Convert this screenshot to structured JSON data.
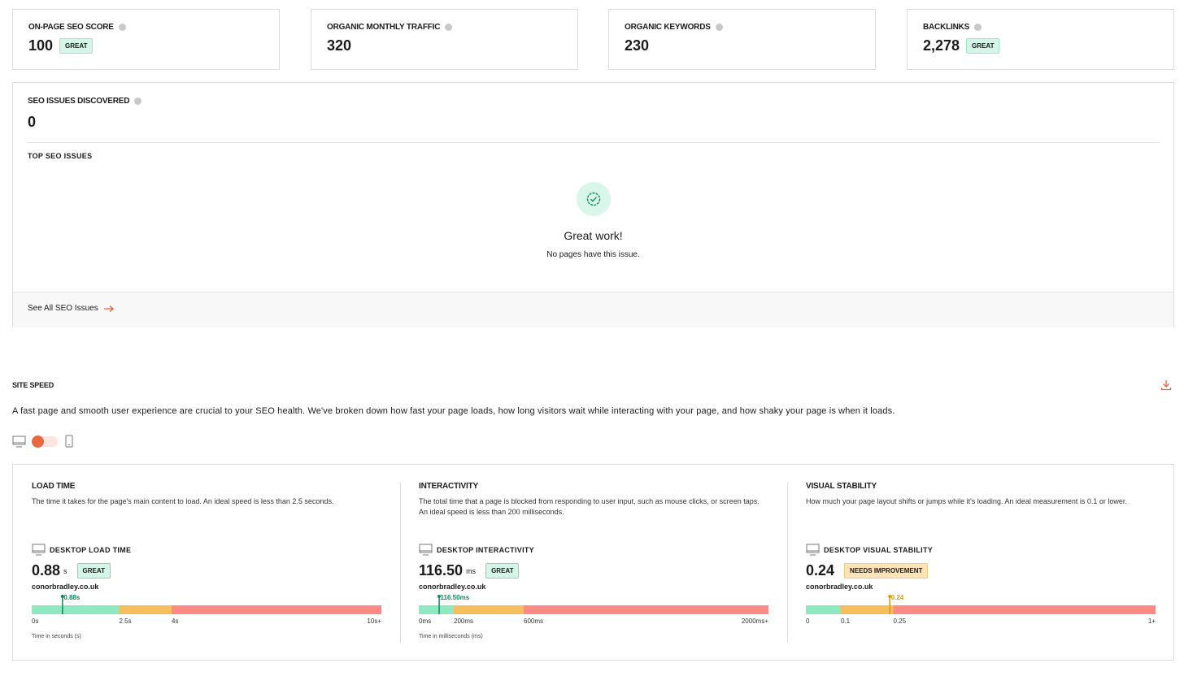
{
  "metrics": [
    {
      "label": "ON-PAGE SEO SCORE",
      "value": 100,
      "badge": "GREAT"
    },
    {
      "label": "ORGANIC MONTHLY TRAFFIC",
      "value": 320
    },
    {
      "label": "ORGANIC KEYWORDS",
      "value": 230
    },
    {
      "label": "BACKLINKS",
      "value": "2,278",
      "badge": "GREAT"
    }
  ],
  "issues": {
    "label": "SEO ISSUES DISCOVERED",
    "value": 0,
    "subheading": "TOP SEO ISSUES",
    "empty_title": "Great work!",
    "empty_text": "No pages have this issue.",
    "link": "See All SEO Issues"
  },
  "site_speed": {
    "title": "SITE SPEED",
    "description": "A fast page and smooth user experience are crucial to your SEO health. We've broken down how fast your page loads, how long visitors wait while interacting with your page, and how shaky your page is when it loads.",
    "cards": [
      {
        "title": "LOAD TIME",
        "description": "The time it takes for the page's main content to load. An ideal speed is less than 2.5 seconds.",
        "metric_title": "DESKTOP LOAD TIME",
        "value": "0.88",
        "unit": "s",
        "badge": "GREAT",
        "badge_bg": "#d3f6e6",
        "color": "#11875a",
        "site": "conorbradley.co.uk",
        "gauge": {
          "value": 0.88,
          "label": "0.88s",
          "lim": [
            0,
            10
          ],
          "ticks": [
            {
              "value": 0,
              "label": "0s"
            },
            {
              "value": 2.5,
              "label": "2.5s"
            },
            {
              "value": 4,
              "label": "4s"
            },
            {
              "value": 10,
              "label": "10s+"
            }
          ],
          "colors": [
            "#8ee9c3",
            "#f5bf5d",
            "#fc8b85"
          ],
          "axis_label": "Time in seconds (s)"
        }
      },
      {
        "title": "INTERACTIVITY",
        "description": "The total time that a page is blocked from responding to user input, such as mouse clicks, or screen taps. An ideal speed is less than 200 milliseconds.",
        "metric_title": "DESKTOP INTERACTIVITY",
        "value": "116.50",
        "unit": "ms",
        "badge": "GREAT",
        "badge_bg": "#d3f6e6",
        "color": "#11875a",
        "site": "conorbradley.co.uk",
        "gauge": {
          "value": 116.5,
          "label": "116.50ms",
          "lim": [
            0,
            2000
          ],
          "ticks": [
            {
              "value": 0,
              "label": "0ms"
            },
            {
              "value": 200,
              "label": "200ms"
            },
            {
              "value": 600,
              "label": "600ms"
            },
            {
              "value": 2000,
              "label": "2000ms+"
            }
          ],
          "colors": [
            "#8ee9c3",
            "#f5bf5d",
            "#fc8b85"
          ],
          "axis_label": "Time in milliseconds (ms)"
        }
      },
      {
        "title": "VISUAL STABILITY",
        "description": "How much your page layout shifts or jumps while it's loading. An ideal measurement is 0.1 or lower.",
        "metric_title": "DESKTOP VISUAL STABILITY",
        "value": "0.24",
        "badge": "NEEDS IMPROVEMENT",
        "badge_bg": "#fde3b6",
        "color": "#d99a10",
        "site": "conorbradley.co.uk",
        "gauge": {
          "value": 0.24,
          "label": "0.24",
          "lim": [
            0,
            1
          ],
          "ticks": [
            0,
            0.1,
            0.25,
            {
              "value": 1,
              "label": "1+"
            }
          ],
          "colors": [
            "#8ee9c3",
            "#f5bf5d",
            "#fc8b85"
          ]
        }
      }
    ]
  }
}
